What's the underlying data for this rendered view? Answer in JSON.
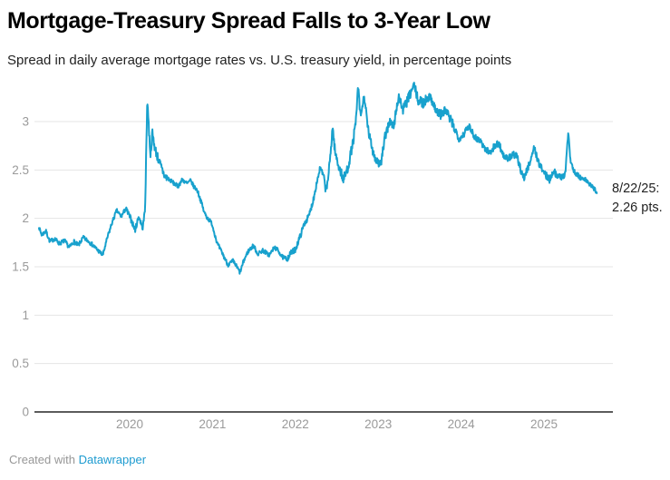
{
  "header": {
    "title": "Mortgage-Treasury Spread Falls to 3-Year Low",
    "subtitle": "Spread in daily average mortgage rates vs. U.S. treasury yield, in percentage points"
  },
  "footer": {
    "credit_prefix": "Created with ",
    "credit_link": "Datawrapper"
  },
  "chart_data": {
    "type": "line",
    "title": "Mortgage-Treasury Spread Falls to 3-Year Low",
    "subtitle": "Spread in daily average mortgage rates vs. U.S. treasury yield, in percentage points",
    "xlabel": "",
    "ylabel": "percentage points",
    "x_ticks": [
      "2020",
      "2021",
      "2022",
      "2023",
      "2024",
      "2025"
    ],
    "y_ticks": [
      0,
      0.5,
      1,
      1.5,
      2,
      2.5,
      3
    ],
    "ylim": [
      0,
      3.45
    ],
    "x_range": [
      "2018-11-28",
      "2025-08-22"
    ],
    "grid": "horizontal",
    "legend": "none",
    "annotation": "8/22/25: 2.26 pts.",
    "last_point": {
      "date": "8/22/25",
      "value": 2.26,
      "unit": "pts."
    },
    "colors": {
      "line": "#18a1cd",
      "gridline": "#e4e4e4",
      "axis_line": "#262626",
      "tick_label": "#9a9a9a",
      "annotation_text": "#222222",
      "credit_text": "#979797",
      "credit_link": "#1d9bd0"
    },
    "series": [
      {
        "name": "Mortgage-Treasury spread",
        "points": [
          [
            "2018-11-28",
            1.9
          ],
          [
            "2018-12-10",
            1.83
          ],
          [
            "2018-12-28",
            1.87
          ],
          [
            "2019-01-15",
            1.76
          ],
          [
            "2019-02-05",
            1.79
          ],
          [
            "2019-02-25",
            1.74
          ],
          [
            "2019-03-20",
            1.77
          ],
          [
            "2019-04-10",
            1.7
          ],
          [
            "2019-05-01",
            1.76
          ],
          [
            "2019-05-20",
            1.72
          ],
          [
            "2019-06-10",
            1.8
          ],
          [
            "2019-07-01",
            1.77
          ],
          [
            "2019-07-20",
            1.73
          ],
          [
            "2019-08-10",
            1.68
          ],
          [
            "2019-09-05",
            1.62
          ],
          [
            "2019-09-25",
            1.8
          ],
          [
            "2019-10-15",
            1.95
          ],
          [
            "2019-11-05",
            2.08
          ],
          [
            "2019-11-25",
            2.02
          ],
          [
            "2019-12-15",
            2.1
          ],
          [
            "2020-01-05",
            2.0
          ],
          [
            "2020-01-25",
            1.88
          ],
          [
            "2020-02-10",
            2.02
          ],
          [
            "2020-02-28",
            1.9
          ],
          [
            "2020-03-09",
            2.1
          ],
          [
            "2020-03-19",
            3.26
          ],
          [
            "2020-03-26",
            2.9
          ],
          [
            "2020-04-02",
            2.66
          ],
          [
            "2020-04-10",
            2.88
          ],
          [
            "2020-04-22",
            2.72
          ],
          [
            "2020-05-05",
            2.62
          ],
          [
            "2020-05-20",
            2.52
          ],
          [
            "2020-06-05",
            2.43
          ],
          [
            "2020-06-25",
            2.4
          ],
          [
            "2020-07-15",
            2.36
          ],
          [
            "2020-08-01",
            2.33
          ],
          [
            "2020-08-20",
            2.4
          ],
          [
            "2020-09-10",
            2.36
          ],
          [
            "2020-09-25",
            2.39
          ],
          [
            "2020-10-10",
            2.33
          ],
          [
            "2020-10-25",
            2.29
          ],
          [
            "2020-11-10",
            2.18
          ],
          [
            "2020-11-25",
            2.06
          ],
          [
            "2020-12-10",
            2.0
          ],
          [
            "2020-12-28",
            1.95
          ],
          [
            "2021-01-22",
            1.74
          ],
          [
            "2021-02-15",
            1.63
          ],
          [
            "2021-03-10",
            1.52
          ],
          [
            "2021-04-01",
            1.56
          ],
          [
            "2021-04-18",
            1.5
          ],
          [
            "2021-05-02",
            1.44
          ],
          [
            "2021-05-20",
            1.57
          ],
          [
            "2021-06-07",
            1.66
          ],
          [
            "2021-07-01",
            1.72
          ],
          [
            "2021-07-19",
            1.63
          ],
          [
            "2021-08-10",
            1.67
          ],
          [
            "2021-09-08",
            1.62
          ],
          [
            "2021-10-01",
            1.7
          ],
          [
            "2021-10-17",
            1.67
          ],
          [
            "2021-11-05",
            1.6
          ],
          [
            "2021-11-25",
            1.58
          ],
          [
            "2021-12-12",
            1.64
          ],
          [
            "2022-01-01",
            1.68
          ],
          [
            "2022-01-20",
            1.8
          ],
          [
            "2022-02-10",
            1.95
          ],
          [
            "2022-03-01",
            2.02
          ],
          [
            "2022-03-20",
            2.18
          ],
          [
            "2022-04-05",
            2.37
          ],
          [
            "2022-04-20",
            2.52
          ],
          [
            "2022-05-05",
            2.44
          ],
          [
            "2022-05-17",
            2.28
          ],
          [
            "2022-06-01",
            2.55
          ],
          [
            "2022-06-14",
            2.95
          ],
          [
            "2022-06-25",
            2.68
          ],
          [
            "2022-07-10",
            2.55
          ],
          [
            "2022-08-01",
            2.4
          ],
          [
            "2022-08-20",
            2.52
          ],
          [
            "2022-09-10",
            2.76
          ],
          [
            "2022-09-25",
            3.0
          ],
          [
            "2022-10-04",
            3.36
          ],
          [
            "2022-10-15",
            3.05
          ],
          [
            "2022-11-01",
            3.26
          ],
          [
            "2022-11-15",
            2.95
          ],
          [
            "2022-12-01",
            2.76
          ],
          [
            "2022-12-20",
            2.62
          ],
          [
            "2023-01-12",
            2.55
          ],
          [
            "2023-02-01",
            2.85
          ],
          [
            "2023-02-19",
            3.0
          ],
          [
            "2023-03-10",
            2.95
          ],
          [
            "2023-04-01",
            3.27
          ],
          [
            "2023-04-20",
            3.12
          ],
          [
            "2023-05-10",
            3.22
          ],
          [
            "2023-05-25",
            3.3
          ],
          [
            "2023-06-08",
            3.38
          ],
          [
            "2023-06-25",
            3.22
          ],
          [
            "2023-07-18",
            3.19
          ],
          [
            "2023-08-10",
            3.26
          ],
          [
            "2023-08-27",
            3.22
          ],
          [
            "2023-09-15",
            3.1
          ],
          [
            "2023-10-07",
            3.07
          ],
          [
            "2023-10-25",
            3.12
          ],
          [
            "2023-11-15",
            3.02
          ],
          [
            "2023-12-05",
            2.92
          ],
          [
            "2023-12-24",
            2.82
          ],
          [
            "2024-01-15",
            2.88
          ],
          [
            "2024-02-07",
            2.96
          ],
          [
            "2024-03-01",
            2.84
          ],
          [
            "2024-03-27",
            2.8
          ],
          [
            "2024-04-15",
            2.72
          ],
          [
            "2024-05-06",
            2.68
          ],
          [
            "2024-05-25",
            2.74
          ],
          [
            "2024-06-15",
            2.78
          ],
          [
            "2024-07-05",
            2.65
          ],
          [
            "2024-07-25",
            2.61
          ],
          [
            "2024-08-15",
            2.66
          ],
          [
            "2024-09-03",
            2.64
          ],
          [
            "2024-09-20",
            2.5
          ],
          [
            "2024-10-05",
            2.42
          ],
          [
            "2024-10-25",
            2.55
          ],
          [
            "2024-11-18",
            2.73
          ],
          [
            "2024-12-10",
            2.56
          ],
          [
            "2025-01-05",
            2.46
          ],
          [
            "2025-01-25",
            2.4
          ],
          [
            "2025-02-10",
            2.49
          ],
          [
            "2025-03-10",
            2.42
          ],
          [
            "2025-04-05",
            2.46
          ],
          [
            "2025-04-18",
            2.9
          ],
          [
            "2025-04-28",
            2.6
          ],
          [
            "2025-05-12",
            2.49
          ],
          [
            "2025-06-09",
            2.42
          ],
          [
            "2025-07-07",
            2.39
          ],
          [
            "2025-07-31",
            2.33
          ],
          [
            "2025-08-12",
            2.3
          ],
          [
            "2025-08-22",
            2.26
          ]
        ]
      }
    ]
  }
}
